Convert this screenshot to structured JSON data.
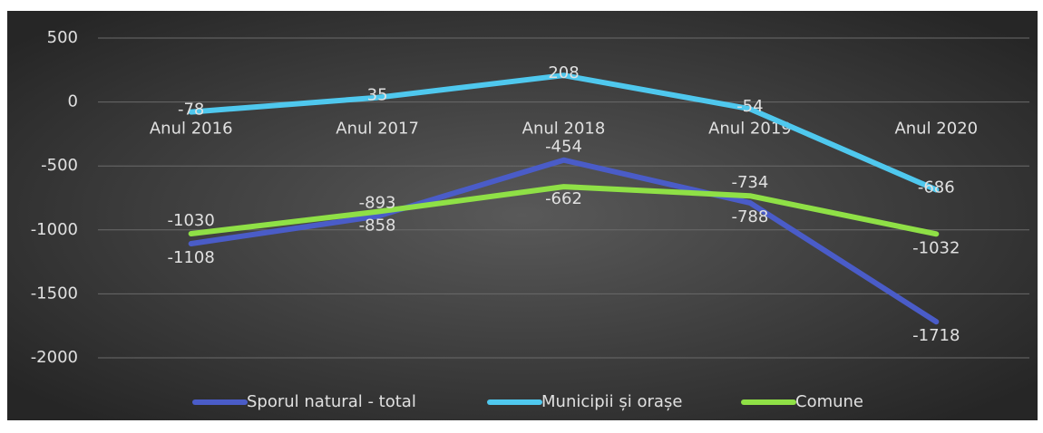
{
  "chart_data": {
    "type": "line",
    "categories": [
      "Anul 2016",
      "Anul 2017",
      "Anul 2018",
      "Anul 2019",
      "Anul 2020"
    ],
    "series": [
      {
        "name": "Sporul natural - total",
        "color": "#4a5cc8",
        "values": [
          -1108,
          -893,
          -454,
          -788,
          -1718
        ]
      },
      {
        "name": "Municipii și orașe",
        "color": "#4fc8ee",
        "values": [
          -78,
          35,
          208,
          -54,
          -686
        ]
      },
      {
        "name": "Comune",
        "color": "#8fe046",
        "values": [
          -1030,
          -858,
          -662,
          -734,
          -1032
        ]
      }
    ],
    "ylim": [
      -2000,
      500
    ],
    "yticks": [
      -2000,
      -1500,
      -1000,
      -500,
      0,
      500
    ],
    "grid": true,
    "legend": "bottom"
  }
}
